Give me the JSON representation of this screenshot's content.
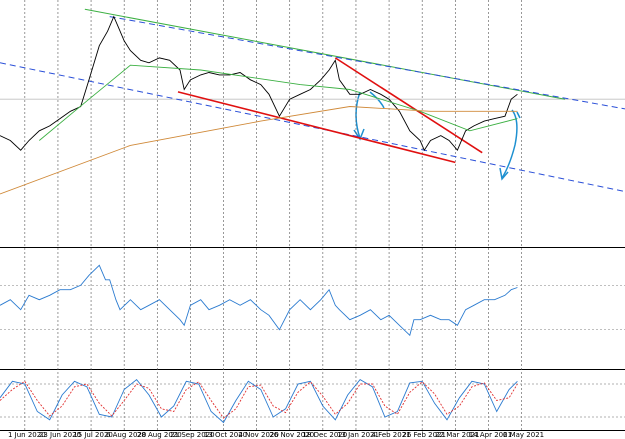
{
  "chart_data": [
    {
      "type": "line",
      "xlim": [
        0,
        302
      ],
      "ylim": [
        0,
        100
      ],
      "xticks": [
        {
          "value": 12,
          "label": "1 Jun 2020"
        },
        {
          "value": 28,
          "label": "23 Jun 2020"
        },
        {
          "value": 44,
          "label": "15 Jul 2020"
        },
        {
          "value": 60,
          "label": "6 Aug 2020"
        },
        {
          "value": 76,
          "label": "28 Aug 2020"
        },
        {
          "value": 92,
          "label": "21 Sep 2020"
        },
        {
          "value": 108,
          "label": "13 Oct 2020"
        },
        {
          "value": 124,
          "label": "4 Nov 2020"
        },
        {
          "value": 140,
          "label": "26 Nov 2020"
        },
        {
          "value": 156,
          "label": "18 Dec 2020"
        },
        {
          "value": 172,
          "label": "13 Jan 2021"
        },
        {
          "value": 188,
          "label": "4 Feb 2021"
        },
        {
          "value": 204,
          "label": "26 Feb 2021"
        },
        {
          "value": 220,
          "label": "22 Mar 2021"
        },
        {
          "value": 236,
          "label": "14 Apr 2021"
        },
        {
          "value": 252,
          "label": "6 May 2021"
        }
      ],
      "grid": true,
      "price_line": 60,
      "series": [
        {
          "color": "#000000",
          "x": [
            0,
            5,
            10,
            14,
            19,
            24,
            29,
            34,
            39,
            43,
            48,
            52,
            55,
            57,
            60,
            63,
            68,
            72,
            77,
            82,
            87,
            89,
            92,
            97,
            101,
            106,
            111,
            116,
            121,
            126,
            130,
            135,
            140,
            145,
            150,
            155,
            159,
            162,
            164,
            169,
            174,
            179,
            184,
            188,
            193,
            198,
            203,
            205,
            208,
            213,
            217,
            221,
            225,
            229,
            234,
            239,
            244,
            247,
            250
          ],
          "values": [
            45,
            43,
            39,
            43,
            47,
            49,
            52,
            55,
            57,
            68,
            82,
            88,
            94,
            90,
            84,
            80,
            76,
            75,
            77,
            76,
            72,
            64,
            68,
            70,
            71,
            70,
            70,
            71,
            68,
            66,
            62,
            53,
            60,
            62,
            64,
            68,
            72,
            76,
            68,
            62,
            62,
            64,
            62,
            60,
            55,
            47,
            43,
            39,
            43,
            45,
            43,
            39,
            47,
            49,
            51,
            52,
            53,
            60,
            62
          ]
        },
        {
          "color": "#3cb043",
          "x": [
            19,
            43,
            63,
            97,
            145,
            169,
            203,
            227,
            250
          ],
          "values": [
            43,
            60,
            74,
            72,
            66,
            64,
            55,
            47,
            52
          ]
        },
        {
          "color": "#d08a3a",
          "x": [
            0,
            63,
            126,
            169,
            208,
            250
          ],
          "values": [
            21,
            41,
            51,
            57,
            55,
            55
          ]
        }
      ],
      "trendlines": [
        {
          "x": [
            41,
            273
          ],
          "y": [
            97,
            60
          ],
          "color": "#3cb043",
          "dashed": false
        },
        {
          "x": [
            53,
            302
          ],
          "y": [
            94,
            56
          ],
          "color": "#2a4fd8",
          "dashed": true
        },
        {
          "x": [
            0,
            302
          ],
          "y": [
            75,
            22
          ],
          "color": "#2a4fd8",
          "dashed": true
        },
        {
          "x": [
            86,
            220
          ],
          "y": [
            63,
            34
          ],
          "color": "#e01010",
          "dashed": false
        },
        {
          "x": [
            162,
            233
          ],
          "y": [
            77,
            38
          ],
          "color": "#e01010",
          "dashed": false
        }
      ]
    },
    {
      "type": "line",
      "xlim": [
        0,
        302
      ],
      "ylim": [
        0,
        100
      ],
      "levels": [
        30,
        70
      ],
      "series": [
        {
          "color": "#2b7bd0",
          "x": [
            0,
            5,
            10,
            14,
            19,
            24,
            29,
            34,
            39,
            43,
            48,
            51,
            53,
            56,
            58,
            63,
            68,
            72,
            77,
            82,
            87,
            89,
            92,
            97,
            101,
            106,
            111,
            116,
            121,
            126,
            130,
            135,
            140,
            145,
            150,
            155,
            159,
            162,
            164,
            169,
            174,
            179,
            184,
            188,
            193,
            198,
            200,
            203,
            208,
            213,
            217,
            221,
            225,
            229,
            234,
            239,
            244,
            247,
            250
          ],
          "values": [
            52,
            57,
            48,
            61,
            57,
            61,
            66,
            66,
            70,
            79,
            88,
            75,
            75,
            57,
            48,
            57,
            48,
            52,
            57,
            48,
            39,
            34,
            52,
            57,
            48,
            52,
            57,
            52,
            57,
            48,
            43,
            30,
            48,
            57,
            48,
            57,
            66,
            52,
            48,
            39,
            43,
            48,
            39,
            43,
            34,
            25,
            39,
            39,
            43,
            39,
            39,
            34,
            48,
            52,
            57,
            57,
            61,
            66,
            68
          ]
        }
      ]
    },
    {
      "type": "line",
      "xlim": [
        0,
        302
      ],
      "ylim": [
        0,
        100
      ],
      "levels": [
        20,
        80
      ],
      "series": [
        {
          "color": "#2b7bd0",
          "dashed": false,
          "x": [
            0,
            6,
            12,
            18,
            24,
            30,
            36,
            42,
            48,
            54,
            60,
            66,
            72,
            78,
            84,
            90,
            96,
            102,
            108,
            114,
            120,
            126,
            132,
            138,
            144,
            150,
            156,
            162,
            168,
            174,
            180,
            186,
            192,
            198,
            204,
            210,
            216,
            222,
            228,
            234,
            240,
            246,
            250
          ],
          "values": [
            55,
            85,
            80,
            30,
            15,
            60,
            85,
            75,
            25,
            20,
            70,
            88,
            60,
            20,
            40,
            85,
            80,
            30,
            10,
            50,
            85,
            70,
            20,
            35,
            80,
            85,
            40,
            15,
            60,
            88,
            75,
            20,
            30,
            82,
            85,
            45,
            15,
            55,
            85,
            80,
            30,
            70,
            85
          ]
        },
        {
          "color": "#e03030",
          "dashed": true,
          "x": [
            0,
            6,
            12,
            18,
            24,
            30,
            36,
            42,
            48,
            54,
            60,
            66,
            72,
            78,
            84,
            90,
            96,
            102,
            108,
            114,
            120,
            126,
            132,
            138,
            144,
            150,
            156,
            162,
            168,
            174,
            180,
            186,
            192,
            198,
            204,
            210,
            216,
            222,
            228,
            234,
            240,
            246,
            250
          ],
          "values": [
            50,
            70,
            85,
            50,
            22,
            40,
            75,
            80,
            45,
            22,
            50,
            80,
            72,
            35,
            30,
            70,
            84,
            50,
            18,
            35,
            75,
            78,
            40,
            28,
            65,
            84,
            58,
            25,
            45,
            80,
            80,
            40,
            25,
            65,
            84,
            62,
            25,
            40,
            75,
            82,
            50,
            55,
            80
          ]
        }
      ]
    }
  ]
}
